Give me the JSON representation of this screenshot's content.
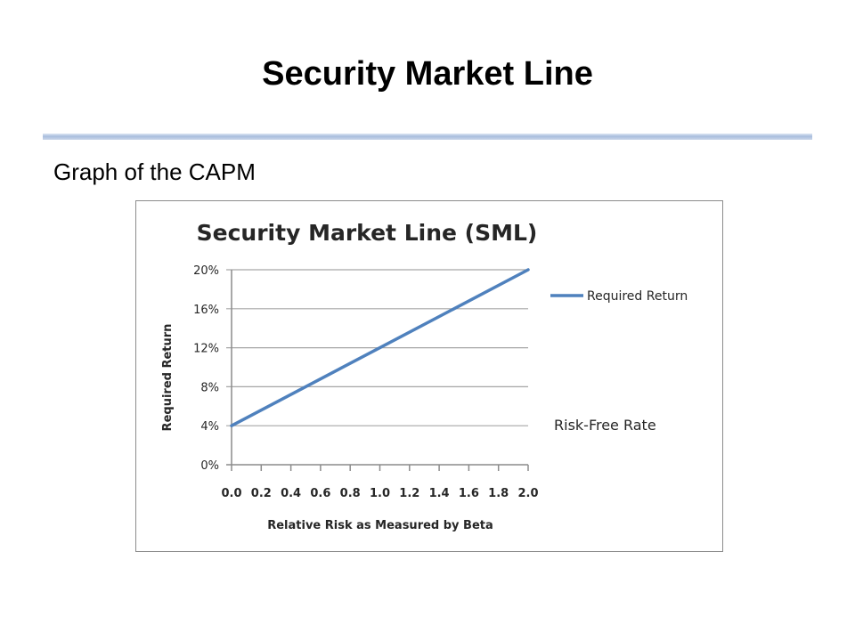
{
  "slide": {
    "title": "Security Market Line",
    "subtitle": "Graph of the CAPM"
  },
  "chart_data": {
    "type": "line",
    "title": "Security Market Line (SML)",
    "xlabel": "Relative Risk as Measured by Beta",
    "ylabel": "Required Return",
    "x_ticks": [
      "0.0",
      "0.2",
      "0.4",
      "0.6",
      "0.8",
      "1.0",
      "1.2",
      "1.4",
      "1.6",
      "1.8",
      "2.0"
    ],
    "y_ticks": [
      "0%",
      "4%",
      "8%",
      "12%",
      "16%",
      "20%"
    ],
    "xlim": [
      0,
      2
    ],
    "ylim": [
      0,
      20
    ],
    "grid": "horizontal",
    "series": [
      {
        "name": "Required Return",
        "color": "#4f81bd",
        "x": [
          0.0,
          2.0
        ],
        "y": [
          4,
          20
        ]
      }
    ],
    "legend": {
      "placement": "right"
    },
    "annotations": [
      {
        "text": "Risk-Free Rate",
        "y": 4
      }
    ]
  }
}
